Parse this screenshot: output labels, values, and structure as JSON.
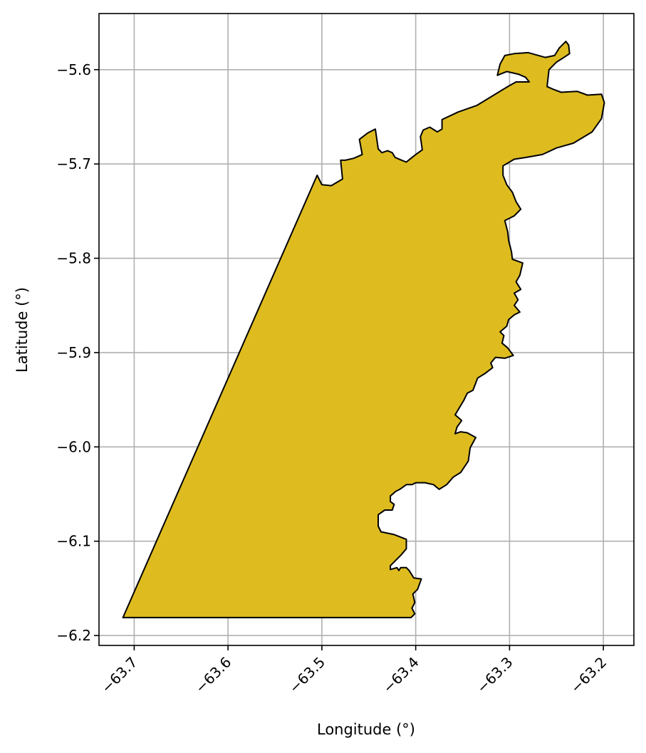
{
  "chart_data": {
    "type": "map",
    "xlabel": "Longitude (°)",
    "ylabel": "Latitude (°)",
    "xlim": [
      -63.7375,
      -63.1675
    ],
    "ylim": [
      -6.2105,
      -5.5405
    ],
    "x_ticks": [
      {
        "value": -63.7,
        "label": "−63.7"
      },
      {
        "value": -63.6,
        "label": "−63.6"
      },
      {
        "value": -63.5,
        "label": "−63.5"
      },
      {
        "value": -63.4,
        "label": "−63.4"
      },
      {
        "value": -63.3,
        "label": "−63.3"
      },
      {
        "value": -63.2,
        "label": "−63.2"
      }
    ],
    "y_ticks": [
      {
        "value": -5.6,
        "label": "−5.6"
      },
      {
        "value": -5.7,
        "label": "−5.7"
      },
      {
        "value": -5.8,
        "label": "−5.8"
      },
      {
        "value": -5.9,
        "label": "−5.9"
      },
      {
        "value": -6.0,
        "label": "−6.0"
      },
      {
        "value": -6.1,
        "label": "−6.1"
      },
      {
        "value": -6.2,
        "label": "−6.2"
      }
    ],
    "grid": true,
    "region": {
      "fill": "#DEBC20",
      "stroke": "#000000",
      "boundary": [
        [
          -63.712,
          -6.181
        ],
        [
          -63.405,
          -6.181
        ],
        [
          -63.401,
          -6.177
        ],
        [
          -63.404,
          -6.171
        ],
        [
          -63.401,
          -6.165
        ],
        [
          -63.403,
          -6.156
        ],
        [
          -63.398,
          -6.151
        ],
        [
          -63.394,
          -6.14
        ],
        [
          -63.402,
          -6.139
        ],
        [
          -63.407,
          -6.131
        ],
        [
          -63.41,
          -6.128
        ],
        [
          -63.416,
          -6.128
        ],
        [
          -63.418,
          -6.131
        ],
        [
          -63.42,
          -6.128
        ],
        [
          -63.427,
          -6.13
        ],
        [
          -63.427,
          -6.126
        ],
        [
          -63.416,
          -6.115
        ],
        [
          -63.41,
          -6.108
        ],
        [
          -63.41,
          -6.098
        ],
        [
          -63.423,
          -6.093
        ],
        [
          -63.437,
          -6.09
        ],
        [
          -63.44,
          -6.084
        ],
        [
          -63.44,
          -6.072
        ],
        [
          -63.433,
          -6.067
        ],
        [
          -63.425,
          -6.067
        ],
        [
          -63.423,
          -6.061
        ],
        [
          -63.427,
          -6.058
        ],
        [
          -63.427,
          -6.052
        ],
        [
          -63.421,
          -6.047
        ],
        [
          -63.417,
          -6.045
        ],
        [
          -63.41,
          -6.04
        ],
        [
          -63.404,
          -6.04
        ],
        [
          -63.4,
          -6.038
        ],
        [
          -63.39,
          -6.038
        ],
        [
          -63.381,
          -6.04
        ],
        [
          -63.375,
          -6.045
        ],
        [
          -63.367,
          -6.04
        ],
        [
          -63.36,
          -6.032
        ],
        [
          -63.352,
          -6.027
        ],
        [
          -63.344,
          -6.015
        ],
        [
          -63.342,
          -6.001
        ],
        [
          -63.336,
          -5.99
        ],
        [
          -63.345,
          -5.985
        ],
        [
          -63.352,
          -5.984
        ],
        [
          -63.358,
          -5.986
        ],
        [
          -63.356,
          -5.979
        ],
        [
          -63.351,
          -5.972
        ],
        [
          -63.358,
          -5.966
        ],
        [
          -63.352,
          -5.956
        ],
        [
          -63.349,
          -5.951
        ],
        [
          -63.345,
          -5.943
        ],
        [
          -63.339,
          -5.94
        ],
        [
          -63.334,
          -5.927
        ],
        [
          -63.326,
          -5.922
        ],
        [
          -63.318,
          -5.916
        ],
        [
          -63.32,
          -5.911
        ],
        [
          -63.315,
          -5.905
        ],
        [
          -63.305,
          -5.906
        ],
        [
          -63.296,
          -5.903
        ],
        [
          -63.302,
          -5.895
        ],
        [
          -63.308,
          -5.89
        ],
        [
          -63.306,
          -5.882
        ],
        [
          -63.31,
          -5.878
        ],
        [
          -63.303,
          -5.872
        ],
        [
          -63.301,
          -5.865
        ],
        [
          -63.295,
          -5.86
        ],
        [
          -63.289,
          -5.857
        ],
        [
          -63.295,
          -5.85
        ],
        [
          -63.291,
          -5.844
        ],
        [
          -63.295,
          -5.837
        ],
        [
          -63.288,
          -5.833
        ],
        [
          -63.293,
          -5.825
        ],
        [
          -63.289,
          -5.818
        ],
        [
          -63.286,
          -5.805
        ],
        [
          -63.297,
          -5.801
        ],
        [
          -63.298,
          -5.793
        ],
        [
          -63.301,
          -5.781
        ],
        [
          -63.302,
          -5.772
        ],
        [
          -63.305,
          -5.76
        ],
        [
          -63.295,
          -5.755
        ],
        [
          -63.288,
          -5.748
        ],
        [
          -63.293,
          -5.74
        ],
        [
          -63.297,
          -5.73
        ],
        [
          -63.303,
          -5.722
        ],
        [
          -63.307,
          -5.712
        ],
        [
          -63.307,
          -5.702
        ],
        [
          -63.295,
          -5.695
        ],
        [
          -63.282,
          -5.693
        ],
        [
          -63.265,
          -5.69
        ],
        [
          -63.25,
          -5.683
        ],
        [
          -63.232,
          -5.678
        ],
        [
          -63.212,
          -5.666
        ],
        [
          -63.202,
          -5.652
        ],
        [
          -63.199,
          -5.635
        ],
        [
          -63.202,
          -5.626
        ],
        [
          -63.217,
          -5.627
        ],
        [
          -63.228,
          -5.623
        ],
        [
          -63.245,
          -5.624
        ],
        [
          -63.253,
          -5.621
        ],
        [
          -63.26,
          -5.618
        ],
        [
          -63.258,
          -5.6
        ],
        [
          -63.25,
          -5.592
        ],
        [
          -63.242,
          -5.587
        ],
        [
          -63.236,
          -5.583
        ],
        [
          -63.237,
          -5.574
        ],
        [
          -63.24,
          -5.57
        ],
        [
          -63.247,
          -5.577
        ],
        [
          -63.252,
          -5.585
        ],
        [
          -63.262,
          -5.587
        ],
        [
          -63.28,
          -5.582
        ],
        [
          -63.295,
          -5.583
        ],
        [
          -63.305,
          -5.585
        ],
        [
          -63.31,
          -5.594
        ],
        [
          -63.313,
          -5.606
        ],
        [
          -63.303,
          -5.602
        ],
        [
          -63.29,
          -5.605
        ],
        [
          -63.283,
          -5.608
        ],
        [
          -63.279,
          -5.613
        ],
        [
          -63.293,
          -5.613
        ],
        [
          -63.302,
          -5.618
        ],
        [
          -63.335,
          -5.638
        ],
        [
          -63.355,
          -5.645
        ],
        [
          -63.372,
          -5.653
        ],
        [
          -63.372,
          -5.663
        ],
        [
          -63.377,
          -5.666
        ],
        [
          -63.385,
          -5.661
        ],
        [
          -63.392,
          -5.664
        ],
        [
          -63.395,
          -5.671
        ],
        [
          -63.393,
          -5.685
        ],
        [
          -63.4,
          -5.69
        ],
        [
          -63.405,
          -5.694
        ],
        [
          -63.41,
          -5.698
        ],
        [
          -63.415,
          -5.696
        ],
        [
          -63.422,
          -5.693
        ],
        [
          -63.425,
          -5.688
        ],
        [
          -63.43,
          -5.686
        ],
        [
          -63.436,
          -5.688
        ],
        [
          -63.44,
          -5.684
        ],
        [
          -63.443,
          -5.663
        ],
        [
          -63.451,
          -5.667
        ],
        [
          -63.46,
          -5.674
        ],
        [
          -63.457,
          -5.69
        ],
        [
          -63.466,
          -5.694
        ],
        [
          -63.475,
          -5.696
        ],
        [
          -63.48,
          -5.696
        ],
        [
          -63.478,
          -5.716
        ],
        [
          -63.49,
          -5.723
        ],
        [
          -63.5,
          -5.722
        ],
        [
          -63.505,
          -5.712
        ],
        [
          -63.712,
          -6.181
        ]
      ]
    }
  }
}
